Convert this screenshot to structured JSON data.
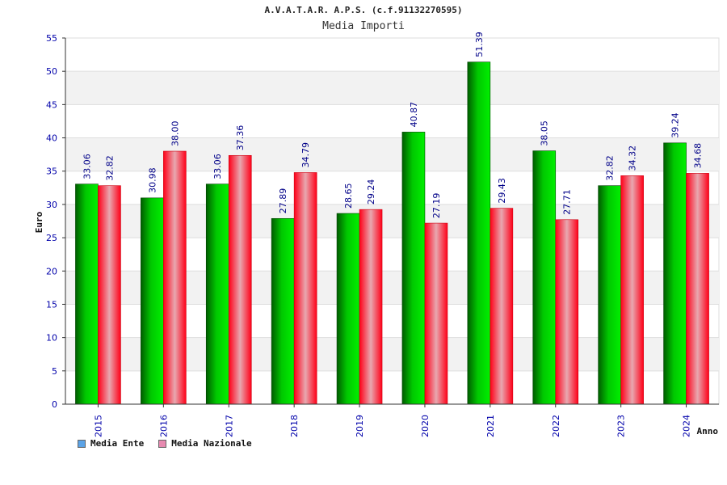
{
  "header": {
    "title": "A.V.A.T.A.R. A.P.S. (c.f.91132270595)",
    "subtitle": "Media Importi"
  },
  "legend": {
    "items": [
      {
        "label": "Media Ente",
        "color": "#5ba3e6"
      },
      {
        "label": "Media Nazionale",
        "color": "#e78ab0"
      }
    ]
  },
  "colors": {
    "ente_dark": "#005c00",
    "ente_light": "#00e000",
    "nazionale_dark": "#ff0018",
    "nazionale_light": "#e8a8b0",
    "label_blue": "#000088",
    "axis_blue": "#0000aa",
    "band": "#f2f2f2"
  },
  "chart_data": {
    "type": "bar",
    "title": "A.V.A.T.A.R. A.P.S. (c.f.91132270595)",
    "subtitle": "Media Importi",
    "xlabel": "Anno",
    "ylabel": "Euro",
    "ylim": [
      0,
      55
    ],
    "yticks": [
      0,
      5,
      10,
      15,
      20,
      25,
      30,
      35,
      40,
      45,
      50,
      55
    ],
    "categories": [
      "2015",
      "2016",
      "2017",
      "2018",
      "2019",
      "2020",
      "2021",
      "2022",
      "2023",
      "2024"
    ],
    "series": [
      {
        "name": "Media Ente",
        "values": [
          33.06,
          30.98,
          33.06,
          27.89,
          28.65,
          40.87,
          51.39,
          38.05,
          32.82,
          39.24
        ],
        "labels": [
          "33.06",
          "30.98",
          "33.06",
          "27.89",
          "28.65",
          "40.87",
          "51.39",
          "38.05",
          "32.82",
          "39.24"
        ]
      },
      {
        "name": "Media Nazionale",
        "values": [
          32.82,
          38.0,
          37.36,
          34.79,
          29.24,
          27.19,
          29.43,
          27.71,
          34.32,
          34.68
        ],
        "labels": [
          "32.82",
          "38.00",
          "37.36",
          "34.79",
          "29.24",
          "27.19",
          "29.43",
          "27.71",
          "34.32",
          "34.68"
        ]
      }
    ]
  }
}
